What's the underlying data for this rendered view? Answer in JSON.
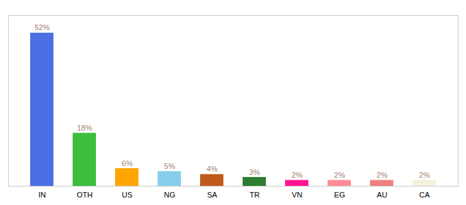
{
  "chart_data": {
    "type": "bar",
    "categories": [
      "IN",
      "OTH",
      "US",
      "NG",
      "SA",
      "TR",
      "VN",
      "EG",
      "AU",
      "CA"
    ],
    "values": [
      52,
      18,
      6,
      5,
      4,
      3,
      2,
      2,
      2,
      2
    ],
    "value_labels": [
      "52%",
      "18%",
      "6%",
      "5%",
      "4%",
      "3%",
      "2%",
      "2%",
      "2%",
      "2%"
    ],
    "colors": [
      "#4A6FE3",
      "#3DBE3D",
      "#FFA500",
      "#87CEEB",
      "#C05A1A",
      "#2E7D32",
      "#FF1493",
      "#FF8C94",
      "#F08080",
      "#F5F0DC"
    ],
    "ylim": [
      0,
      58
    ],
    "data_labels": true,
    "tick_labels": "x",
    "grid": false
  }
}
